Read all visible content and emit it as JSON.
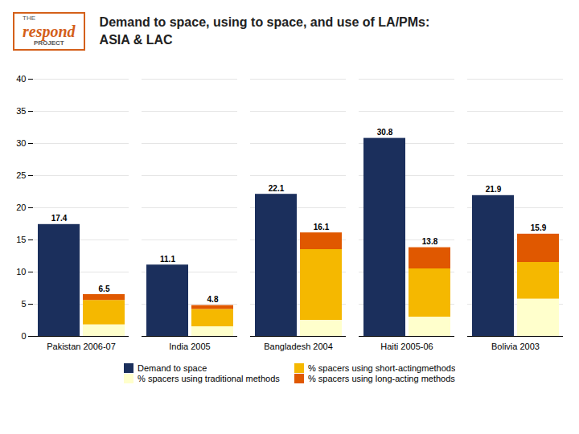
{
  "chart_data": {
    "type": "bar",
    "title": "Demand to space, using to space, and use of LA/PMs:\nASIA & LAC",
    "annotations": [
      "THE",
      "respond",
      "PROJECT"
    ],
    "categories": [
      "Pakistan 2006-07",
      "India 2005",
      "Bangladesh 2004",
      "Haiti 2005-06",
      "Bolivia 2003"
    ],
    "series": [
      {
        "name": "Demand to space",
        "color": "#1b2f5c",
        "values": [
          17.4,
          11.1,
          22.1,
          30.8,
          21.9
        ],
        "stacked": false
      },
      {
        "name": "% spacers using traditional methods",
        "color": "#ffffcc",
        "values": [
          1.8,
          1.5,
          2.5,
          3.0,
          5.8
        ],
        "stacked": true
      },
      {
        "name": "% spacers using short-actingmethods",
        "color": "#f5b800",
        "values": [
          3.8,
          2.7,
          11.0,
          7.5,
          5.7
        ],
        "stacked": true
      },
      {
        "name": "% spacers using long-acting methods",
        "color": "#e05800",
        "values": [
          0.9,
          0.6,
          2.6,
          3.3,
          4.4
        ],
        "stacked": true
      }
    ],
    "totals": [
      6.5,
      4.8,
      16.1,
      13.8,
      15.9
    ],
    "ylim": [
      0,
      40
    ],
    "yticks": [
      0,
      5,
      10,
      15,
      20,
      25,
      30,
      35,
      40
    ],
    "grid": true,
    "data_labels": true,
    "legend": "bottom"
  }
}
